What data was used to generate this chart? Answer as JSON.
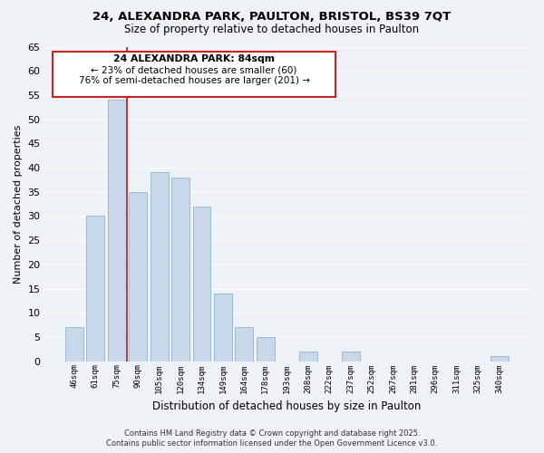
{
  "title": "24, ALEXANDRA PARK, PAULTON, BRISTOL, BS39 7QT",
  "subtitle": "Size of property relative to detached houses in Paulton",
  "bar_color": "#c8d8ea",
  "bar_edge_color": "#9abcd0",
  "background_color": "#eef2f7",
  "annotation_box_facecolor": "#ffffff",
  "annotation_border_color": "#cc2222",
  "vline_color": "#cc2222",
  "categories": [
    "46sqm",
    "61sqm",
    "75sqm",
    "90sqm",
    "105sqm",
    "120sqm",
    "134sqm",
    "149sqm",
    "164sqm",
    "178sqm",
    "193sqm",
    "208sqm",
    "222sqm",
    "237sqm",
    "252sqm",
    "267sqm",
    "281sqm",
    "296sqm",
    "311sqm",
    "325sqm",
    "340sqm"
  ],
  "values": [
    7,
    30,
    54,
    35,
    39,
    38,
    32,
    14,
    7,
    5,
    0,
    2,
    0,
    2,
    0,
    0,
    0,
    0,
    0,
    0,
    1
  ],
  "ylabel": "Number of detached properties",
  "xlabel": "Distribution of detached houses by size in Paulton",
  "ylim": [
    0,
    65
  ],
  "yticks": [
    0,
    5,
    10,
    15,
    20,
    25,
    30,
    35,
    40,
    45,
    50,
    55,
    60,
    65
  ],
  "annotation_title": "24 ALEXANDRA PARK: 84sqm",
  "annotation_line1": "← 23% of detached houses are smaller (60)",
  "annotation_line2": "76% of semi-detached houses are larger (201) →",
  "footer_line1": "Contains HM Land Registry data © Crown copyright and database right 2025.",
  "footer_line2": "Contains public sector information licensed under the Open Government Licence v3.0.",
  "grid_color": "#ffffff"
}
